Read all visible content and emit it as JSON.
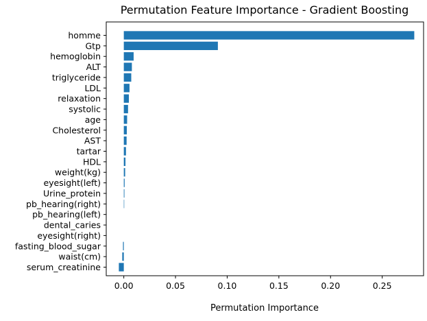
{
  "chart_data": {
    "type": "bar",
    "orientation": "horizontal",
    "title": "Permutation Feature Importance - Gradient Boosting",
    "xlabel": "Permutation Importance",
    "ylabel": "",
    "xlim": [
      -0.017,
      0.29
    ],
    "xticks": [
      0.0,
      0.05,
      0.1,
      0.15,
      0.2,
      0.25
    ],
    "xtick_labels": [
      "0.00",
      "0.05",
      "0.10",
      "0.15",
      "0.20",
      "0.25"
    ],
    "grid": false,
    "bar_color": "#1f77b4",
    "categories": [
      "homme",
      "Gtp",
      "hemoglobin",
      "ALT",
      "triglyceride",
      "LDL",
      "relaxation",
      "systolic",
      "age",
      "Cholesterol",
      "AST",
      "tartar",
      "HDL",
      "weight(kg)",
      "eyesight(left)",
      "Urine_protein",
      "pb_hearing(right)",
      "pb_hearing(left)",
      "dental_caries",
      "eyesight(right)",
      "fasting_blood_sugar",
      "waist(cm)",
      "serum_creatinine"
    ],
    "values": [
      0.281,
      0.091,
      0.0095,
      0.0078,
      0.0072,
      0.0055,
      0.0049,
      0.0041,
      0.0032,
      0.0029,
      0.0027,
      0.0021,
      0.0016,
      0.0013,
      0.0008,
      0.0006,
      0.0004,
      0.0,
      0.0,
      0.0,
      -0.0008,
      -0.0015,
      -0.0048
    ]
  }
}
